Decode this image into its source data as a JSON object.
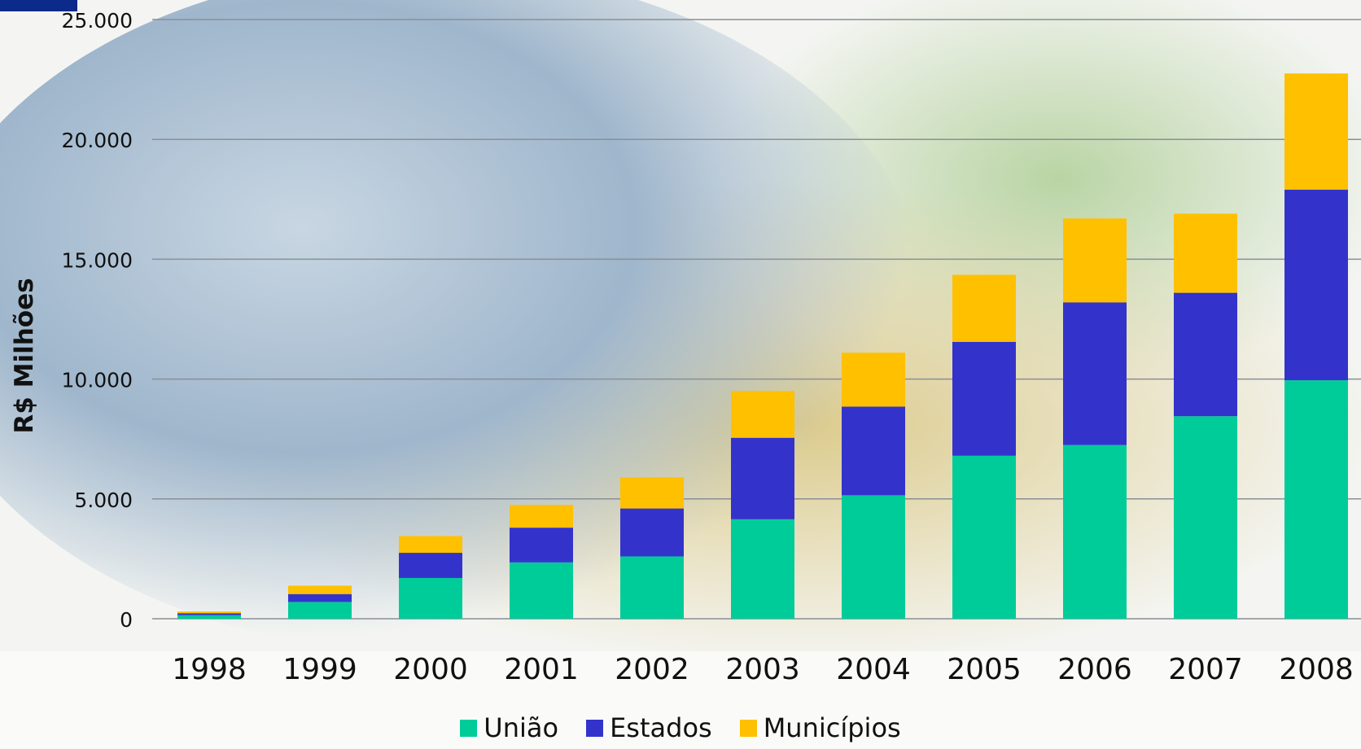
{
  "chart_data": {
    "type": "bar",
    "stacked": true,
    "ylabel": "R$ Milhões",
    "ylim": [
      0,
      25000
    ],
    "yticks": [
      "0",
      "5.000",
      "10.000",
      "15.000",
      "20.000",
      "25.000"
    ],
    "ytick_values": [
      0,
      5000,
      10000,
      15000,
      20000,
      25000
    ],
    "grid": true,
    "legend_position": "bottom",
    "categories": [
      "1998",
      "1999",
      "2000",
      "2001",
      "2002",
      "2003",
      "2004",
      "2005",
      "2006",
      "2007",
      "2008"
    ],
    "series": [
      {
        "name": "União",
        "color": "#00cc99",
        "values": [
          150,
          700,
          1700,
          2350,
          2600,
          4150,
          5150,
          6800,
          7250,
          8450,
          9950
        ]
      },
      {
        "name": "Estados",
        "color": "#3333cc",
        "values": [
          80,
          330,
          1050,
          1450,
          2000,
          3400,
          3700,
          4750,
          5950,
          5150,
          7950
        ]
      },
      {
        "name": "Municípios",
        "color": "#ffc000",
        "values": [
          70,
          350,
          700,
          950,
          1300,
          1950,
          2250,
          2800,
          3500,
          3300,
          4850
        ]
      }
    ]
  }
}
